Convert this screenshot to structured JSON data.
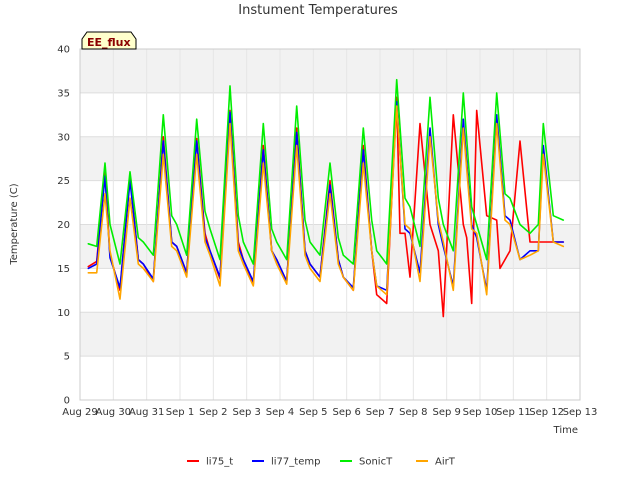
{
  "chart_data": {
    "type": "line",
    "title": "Instument Temperatures",
    "xlabel": "Time",
    "ylabel": "Temperature (C)",
    "badge": "EE_flux",
    "xlim": [
      0,
      15
    ],
    "ylim": [
      0,
      40
    ],
    "yticks": [
      0,
      5,
      10,
      15,
      20,
      25,
      30,
      35,
      40
    ],
    "x_ticks": [
      "Aug 29",
      "Aug 30",
      "Aug 31",
      "Sep 1",
      "Sep 2",
      "Sep 3",
      "Sep 4",
      "Sep 5",
      "Sep 6",
      "Sep 7",
      "Sep 8",
      "Sep 9",
      "Sep 10",
      "Sep 11",
      "Sep 12",
      "Sep 13"
    ],
    "grid": true,
    "legend_position": "bottom",
    "x_unit": "days since Aug 29",
    "series": [
      {
        "name": "li75_t",
        "color": "#ff0000",
        "x": [
          0.25,
          0.5,
          0.75,
          0.9,
          1.2,
          1.5,
          1.75,
          1.9,
          2.2,
          2.5,
          2.75,
          2.9,
          3.2,
          3.5,
          3.75,
          3.9,
          4.2,
          4.5,
          4.75,
          4.9,
          5.2,
          5.5,
          5.75,
          5.9,
          6.2,
          6.5,
          6.75,
          6.9,
          7.2,
          7.5,
          7.75,
          7.9,
          8.2,
          8.5,
          8.75,
          8.9,
          9.2,
          9.5,
          9.6,
          9.75,
          9.9,
          10.2,
          10.5,
          10.75,
          10.9,
          11.2,
          11.5,
          11.6,
          11.75,
          11.9,
          12.2,
          12.5,
          12.6,
          12.75,
          12.9,
          13.2,
          13.5,
          13.75,
          13.9,
          14.2,
          14.5
        ],
        "values": [
          15.2,
          15.8,
          26.0,
          16.5,
          12.5,
          25.5,
          16.0,
          15.5,
          13.5,
          30.0,
          18.0,
          17.5,
          14.5,
          29.8,
          19.0,
          17.0,
          13.8,
          33.0,
          18.0,
          16.0,
          13.2,
          29.0,
          17.0,
          16.0,
          13.5,
          31.0,
          17.0,
          15.5,
          14.0,
          25.0,
          16.0,
          14.0,
          12.5,
          29.0,
          17.0,
          12.0,
          11.0,
          34.5,
          19.0,
          19.0,
          14.0,
          31.5,
          20.0,
          17.0,
          9.5,
          32.5,
          20.0,
          18.5,
          11.0,
          33.0,
          21.0,
          20.5,
          15.0,
          16.0,
          17.0,
          29.5,
          18.0,
          18.0,
          18.0,
          18.0,
          18.0
        ]
      },
      {
        "name": "li77_temp",
        "color": "#0000ff",
        "x": [
          0.25,
          0.5,
          0.75,
          0.9,
          1.2,
          1.5,
          1.75,
          1.9,
          2.2,
          2.5,
          2.75,
          2.9,
          3.2,
          3.5,
          3.75,
          3.9,
          4.2,
          4.5,
          4.75,
          4.9,
          5.2,
          5.5,
          5.75,
          5.9,
          6.2,
          6.5,
          6.75,
          6.9,
          7.2,
          7.5,
          7.75,
          7.9,
          8.2,
          8.5,
          8.75,
          8.9,
          9.2,
          9.5,
          9.75,
          9.9,
          10.2,
          10.5,
          10.75,
          10.9,
          11.2,
          11.5,
          11.75,
          11.9,
          12.2,
          12.5,
          12.75,
          12.9,
          13.2,
          13.5,
          13.75,
          13.9,
          14.2,
          14.5
        ],
        "values": [
          15.0,
          15.5,
          25.5,
          16.2,
          12.8,
          25.0,
          16.0,
          15.5,
          13.8,
          29.5,
          18.0,
          17.5,
          14.5,
          29.5,
          18.5,
          17.0,
          14.0,
          32.8,
          17.5,
          16.0,
          13.5,
          28.5,
          17.0,
          16.0,
          13.5,
          30.5,
          17.0,
          15.5,
          14.0,
          24.5,
          16.0,
          14.0,
          12.8,
          28.5,
          17.0,
          13.0,
          12.5,
          34.0,
          19.5,
          19.0,
          14.5,
          31.0,
          20.0,
          17.5,
          13.0,
          32.0,
          20.0,
          18.5,
          12.5,
          32.5,
          21.0,
          20.5,
          16.0,
          17.0,
          17.0,
          29.0,
          18.0,
          18.0
        ]
      },
      {
        "name": "SonicT",
        "color": "#00ee00",
        "x": [
          0.25,
          0.5,
          0.75,
          0.9,
          1.2,
          1.5,
          1.75,
          1.9,
          2.2,
          2.5,
          2.75,
          2.9,
          3.2,
          3.5,
          3.75,
          3.9,
          4.2,
          4.5,
          4.75,
          4.9,
          5.2,
          5.5,
          5.75,
          5.9,
          6.2,
          6.5,
          6.75,
          6.9,
          7.2,
          7.5,
          7.75,
          7.9,
          8.2,
          8.5,
          8.75,
          8.9,
          9.2,
          9.5,
          9.75,
          9.9,
          10.2,
          10.5,
          10.75,
          10.9,
          11.2,
          11.5,
          11.75,
          11.9,
          12.2,
          12.5,
          12.75,
          12.9,
          13.2,
          13.5,
          13.75,
          13.9,
          14.2,
          14.5
        ],
        "values": [
          17.8,
          17.5,
          27.0,
          20.0,
          15.5,
          26.0,
          18.5,
          18.0,
          16.5,
          32.5,
          21.0,
          20.0,
          16.5,
          32.0,
          21.5,
          19.5,
          16.0,
          35.8,
          21.0,
          18.0,
          15.5,
          31.5,
          19.5,
          18.0,
          16.0,
          33.5,
          20.5,
          18.0,
          16.5,
          27.0,
          18.5,
          16.5,
          15.5,
          31.0,
          20.5,
          17.0,
          15.5,
          36.5,
          23.0,
          22.0,
          17.5,
          34.5,
          23.0,
          20.0,
          17.0,
          35.0,
          22.0,
          20.0,
          16.0,
          35.0,
          23.5,
          23.0,
          20.0,
          19.0,
          20.0,
          31.5,
          21.0,
          20.5
        ]
      },
      {
        "name": "AirT",
        "color": "#ffa500",
        "x": [
          0.25,
          0.5,
          0.75,
          0.9,
          1.2,
          1.5,
          1.75,
          1.9,
          2.2,
          2.5,
          2.75,
          2.9,
          3.2,
          3.5,
          3.75,
          3.9,
          4.2,
          4.5,
          4.75,
          4.9,
          5.2,
          5.5,
          5.75,
          5.9,
          6.2,
          6.5,
          6.75,
          6.9,
          7.2,
          7.5,
          7.75,
          7.9,
          8.2,
          8.5,
          8.75,
          8.9,
          9.2,
          9.5,
          9.75,
          9.9,
          10.2,
          10.5,
          10.75,
          10.9,
          11.2,
          11.5,
          11.75,
          11.9,
          12.2,
          12.5,
          12.75,
          12.9,
          13.2,
          13.5,
          13.75,
          13.9,
          14.2,
          14.5
        ],
        "values": [
          14.5,
          14.5,
          23.5,
          17.0,
          11.5,
          23.0,
          15.5,
          15.0,
          13.5,
          28.0,
          17.5,
          17.0,
          14.0,
          28.0,
          18.0,
          16.5,
          13.0,
          31.5,
          17.0,
          15.5,
          13.0,
          27.0,
          17.0,
          15.5,
          13.2,
          29.0,
          16.5,
          15.0,
          13.5,
          23.5,
          15.5,
          14.0,
          12.5,
          27.0,
          17.0,
          13.0,
          12.0,
          33.5,
          20.0,
          19.5,
          13.5,
          30.0,
          20.5,
          18.0,
          12.5,
          31.0,
          19.5,
          19.0,
          12.0,
          31.5,
          20.5,
          20.0,
          16.0,
          16.5,
          17.0,
          28.0,
          18.0,
          17.5
        ]
      }
    ]
  }
}
